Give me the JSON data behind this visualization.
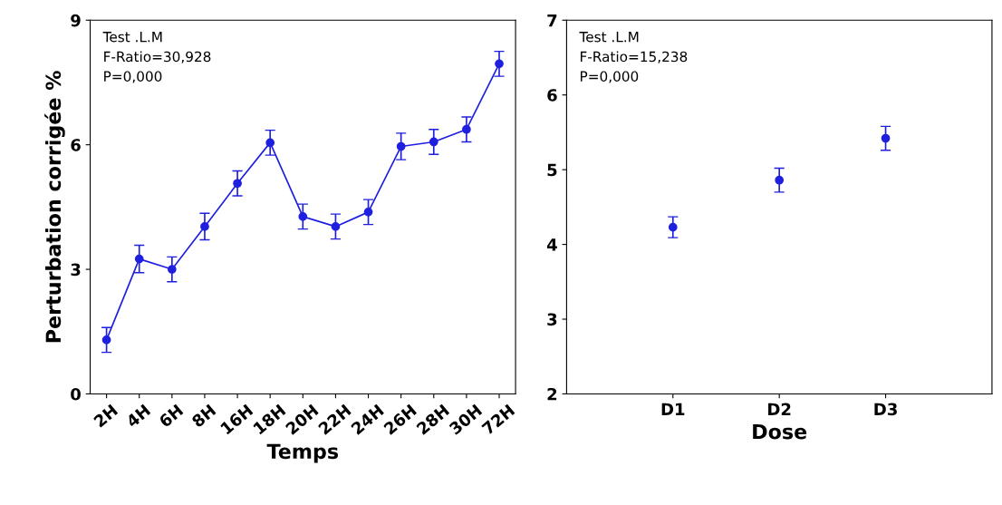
{
  "chart_data": [
    {
      "type": "line",
      "xlabel": "Temps",
      "ylabel": "Perturbation corrigée %",
      "categories": [
        "2H",
        "4H",
        "6H",
        "8H",
        "16H",
        "18H",
        "20H",
        "22H",
        "24H",
        "26H",
        "28H",
        "30H",
        "72H"
      ],
      "series": [
        {
          "color": "#1f1fe0",
          "values": [
            1.3,
            3.25,
            3.0,
            4.03,
            5.07,
            6.05,
            4.27,
            4.03,
            4.38,
            5.96,
            6.07,
            6.37,
            7.95
          ],
          "errors": [
            0.3,
            0.33,
            0.3,
            0.32,
            0.3,
            0.3,
            0.3,
            0.3,
            0.3,
            0.32,
            0.3,
            0.3,
            0.3
          ]
        }
      ],
      "ylim": [
        0,
        9
      ],
      "yticks": [
        0,
        3,
        6,
        9
      ],
      "marker": "circle",
      "grid": false,
      "legend": false,
      "annotations": [
        "Test .L.M",
        "F-Ratio=30,928",
        "P=0,000"
      ]
    },
    {
      "type": "scatter",
      "xlabel": "Dose",
      "categories": [
        "D1",
        "D2",
        "D3"
      ],
      "series": [
        {
          "color": "#1f1fe0",
          "values": [
            4.23,
            4.86,
            5.42
          ],
          "errors": [
            0.14,
            0.16,
            0.16
          ]
        }
      ],
      "ylim": [
        2,
        7
      ],
      "yticks": [
        2,
        3,
        4,
        5,
        6,
        7
      ],
      "marker": "circle",
      "grid": false,
      "legend": false,
      "annotations": [
        "Test .L.M",
        "F-Ratio=15,238",
        "P=0,000"
      ]
    }
  ]
}
